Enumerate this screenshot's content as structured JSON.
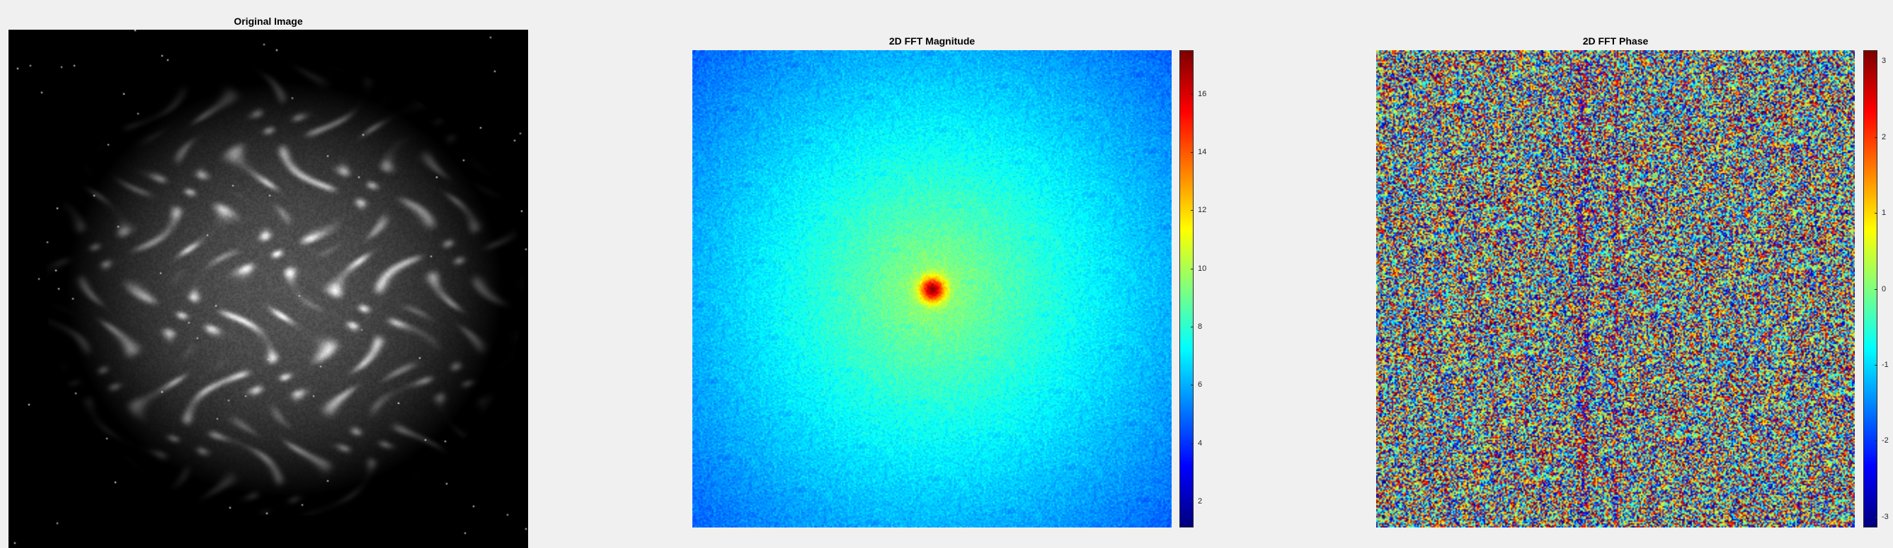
{
  "window": {
    "background": "#f0f0f0"
  },
  "panels": {
    "original": {
      "title": "Original Image"
    },
    "magnitude": {
      "title": "2D FFT Magnitude"
    },
    "phase": {
      "title": "2D FFT Phase"
    }
  },
  "chart_data": [
    {
      "type": "heatmap",
      "title": "Original Image",
      "colormap": "gray",
      "content": "grayscale astronomical nebula image on black background with scattered stars",
      "axes_visible": false
    },
    {
      "type": "heatmap",
      "title": "2D FFT Magnitude",
      "colormap": "jet",
      "clim": [
        1.1,
        17.5
      ],
      "colorbar": {
        "ticks": [
          2,
          4,
          6,
          8,
          10,
          12,
          14,
          16
        ],
        "position": "right"
      },
      "distribution": "radial: peak ~17 at center, ~9.5 mid, ~5.5 at edges, with speckle noise",
      "axes_visible": false
    },
    {
      "type": "heatmap",
      "title": "2D FFT Phase",
      "colormap": "jet",
      "clim": [
        -3.14159,
        3.14159
      ],
      "colorbar": {
        "ticks": [
          -3,
          -2,
          -1,
          0,
          1,
          2,
          3
        ],
        "position": "right"
      },
      "distribution": "uniformly random phase noise in [-pi, pi] with faint vertical banding",
      "axes_visible": false
    }
  ]
}
